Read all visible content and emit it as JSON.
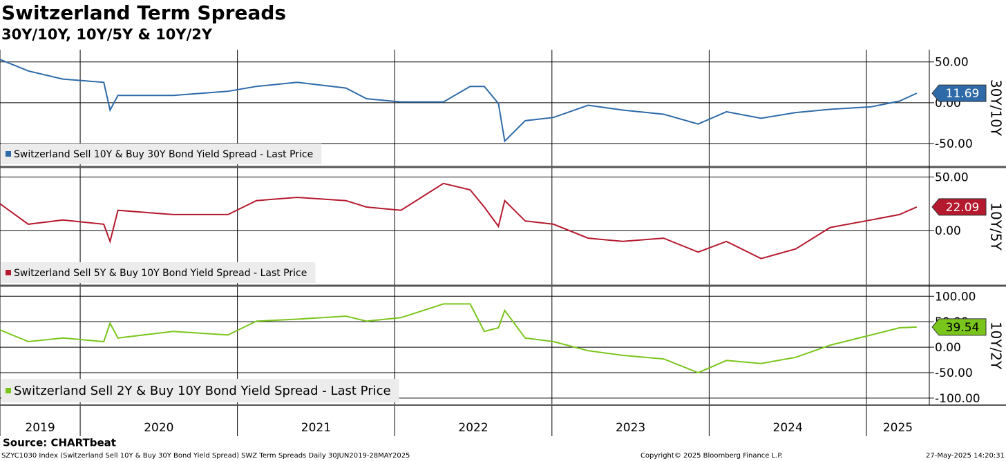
{
  "title": "Switzerland Term Spreads",
  "subtitle": "30Y/10Y, 10Y/5Y & 10Y/2Y",
  "source": "Source: CHARTbeat",
  "footer_left": "SZYC1030 Index (Switzerland Sell 10Y & Buy 30Y Bond Yield Spread) SWZ Term Spreads  Daily 30JUN2019-28MAY2025",
  "footer_center": "Copyright© 2025 Bloomberg Finance L.P.",
  "footer_right": "27-May-2025 14:20:31",
  "chart_data": [
    {
      "type": "line",
      "ylabel": "30Y/10Y",
      "xlim": [
        2019.49,
        2025.4
      ],
      "ylim": [
        -77,
        65
      ],
      "yticks": [
        {
          "value": 50,
          "label": "50.00"
        },
        {
          "value": 0,
          "label": "0.00"
        },
        {
          "value": -50,
          "label": "-50.00"
        }
      ],
      "grid": true,
      "x": [
        2019.49,
        2019.67,
        2019.89,
        2020.15,
        2020.19,
        2020.24,
        2020.59,
        2020.94,
        2021.12,
        2021.38,
        2021.69,
        2021.82,
        2022.04,
        2022.31,
        2022.48,
        2022.57,
        2022.66,
        2022.7,
        2022.83,
        2023.01,
        2023.23,
        2023.45,
        2023.71,
        2023.93,
        2024.11,
        2024.33,
        2024.55,
        2024.77,
        2025.03,
        2025.21,
        2025.32
      ],
      "series": [
        {
          "name": "Switzerland Sell 10Y & Buy 30Y Bond Yield Spread - Last Price",
          "color": "#2e6aa8",
          "values": [
            53,
            39,
            29,
            25,
            -9,
            9,
            9,
            14,
            20,
            25,
            18,
            5,
            1,
            1,
            20,
            20,
            -1,
            -47,
            -22,
            -18,
            -3,
            -9,
            -14,
            -26,
            -11,
            -19,
            -12,
            -8,
            -5,
            2,
            11.69
          ]
        }
      ]
    },
    {
      "type": "line",
      "ylabel": "10Y/5Y",
      "xlim": [
        2019.49,
        2025.4
      ],
      "ylim": [
        -50,
        58
      ],
      "yticks": [
        {
          "value": 50,
          "label": "50.00"
        },
        {
          "value": 0,
          "label": "0.00"
        }
      ],
      "grid": true,
      "x": [
        2019.49,
        2019.67,
        2019.89,
        2020.15,
        2020.19,
        2020.24,
        2020.59,
        2020.94,
        2021.12,
        2021.38,
        2021.69,
        2021.82,
        2022.04,
        2022.31,
        2022.48,
        2022.57,
        2022.66,
        2022.7,
        2022.83,
        2023.01,
        2023.23,
        2023.45,
        2023.71,
        2023.93,
        2024.11,
        2024.33,
        2024.55,
        2024.77,
        2025.03,
        2025.21,
        2025.32
      ],
      "series": [
        {
          "name": "Switzerland Sell 5Y & Buy 10Y Bond Yield Spread - Last Price",
          "color": "#b5192e",
          "values": [
            25,
            6,
            10,
            6,
            -10,
            19,
            15,
            15,
            28,
            31,
            28,
            22,
            19,
            44,
            38,
            22,
            4,
            28,
            9,
            6,
            -7,
            -10,
            -7,
            -20,
            -10,
            -26,
            -17,
            3,
            10,
            15,
            22.09
          ]
        }
      ]
    },
    {
      "type": "line",
      "ylabel": "10Y/2Y",
      "xlim": [
        2019.49,
        2025.4
      ],
      "ylim": [
        -111,
        118
      ],
      "yticks": [
        {
          "value": 100,
          "label": "100.00"
        },
        {
          "value": 50,
          "label": "50.00"
        },
        {
          "value": 0,
          "label": "0.00"
        },
        {
          "value": -50,
          "label": "-50.00"
        },
        {
          "value": -100,
          "label": "-100.00"
        }
      ],
      "xticks": [
        {
          "value": 2019.49,
          "label": "2019"
        },
        {
          "value": 2020,
          "label": "2020"
        },
        {
          "value": 2021,
          "label": "2021"
        },
        {
          "value": 2022,
          "label": "2022"
        },
        {
          "value": 2023,
          "label": "2023"
        },
        {
          "value": 2024,
          "label": "2024"
        },
        {
          "value": 2025,
          "label": "2025"
        }
      ],
      "grid": true,
      "x": [
        2019.49,
        2019.67,
        2019.89,
        2020.15,
        2020.19,
        2020.24,
        2020.59,
        2020.94,
        2021.12,
        2021.38,
        2021.69,
        2021.82,
        2022.04,
        2022.31,
        2022.48,
        2022.57,
        2022.66,
        2022.7,
        2022.83,
        2023.01,
        2023.23,
        2023.45,
        2023.71,
        2023.93,
        2024.11,
        2024.33,
        2024.55,
        2024.77,
        2025.03,
        2025.21,
        2025.32
      ],
      "series": [
        {
          "name": "Switzerland Sell 2Y & Buy 10Y Bond Yield Spread - Last Price",
          "color": "#7ac51c",
          "values": [
            34,
            11,
            18,
            11,
            47,
            18,
            31,
            24,
            51,
            55,
            61,
            51,
            58,
            85,
            85,
            31,
            38,
            72,
            18,
            11,
            -7,
            -16,
            -23,
            -50,
            -26,
            -32,
            -20,
            4,
            24,
            38,
            39.54
          ]
        }
      ]
    }
  ]
}
